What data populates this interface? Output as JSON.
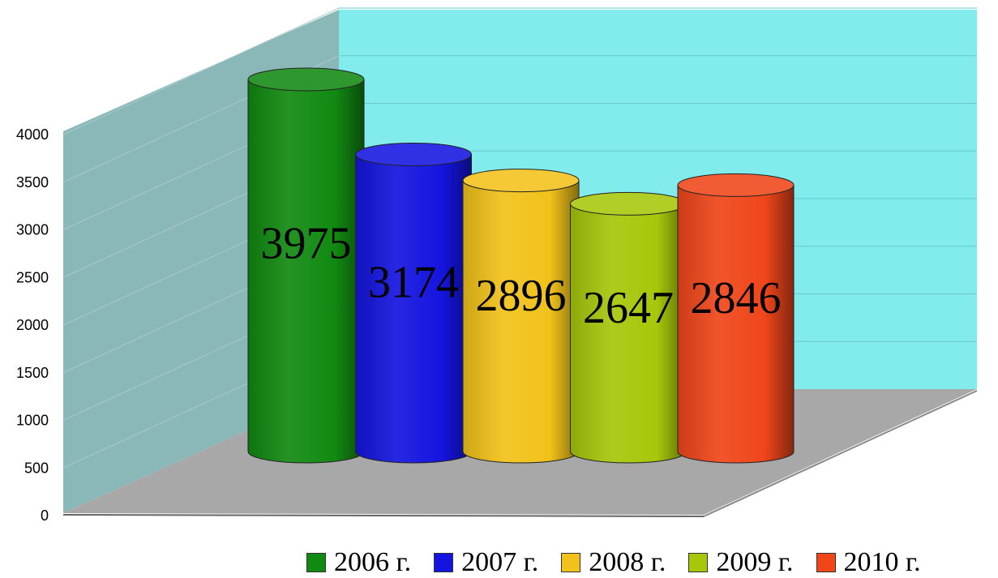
{
  "chart_data": {
    "type": "bar",
    "title": "",
    "xlabel": "",
    "ylabel": "",
    "ylim": [
      0,
      4000
    ],
    "yticks": [
      0,
      500,
      1000,
      1500,
      2000,
      2500,
      3000,
      3500,
      4000
    ],
    "grid": true,
    "legend_position": "bottom",
    "series": [
      {
        "name": "2006 г.",
        "value": 3975,
        "label": "3975",
        "color": "#118a11"
      },
      {
        "name": "2007 г.",
        "value": 3174,
        "label": "3174",
        "color": "#1414e0"
      },
      {
        "name": "2008 г.",
        "value": 2896,
        "label": "2896",
        "color": "#f2c21a"
      },
      {
        "name": "2009 г.",
        "value": 2647,
        "label": "2647",
        "color": "#a6c70a"
      },
      {
        "name": "2010 г.",
        "value": 2846,
        "label": "2846",
        "color": "#f0461a"
      }
    ]
  },
  "colors": {
    "back_wall": "#82ecec",
    "side_wall": "#8ab8b8",
    "floor": "#a8a8a8"
  }
}
